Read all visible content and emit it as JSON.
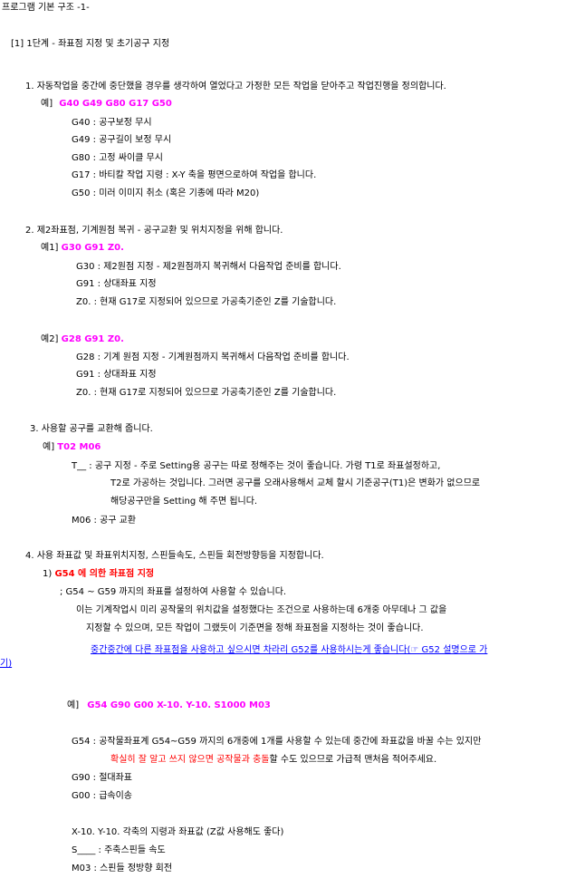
{
  "header": {
    "title": "프로그램  기본 구조 -1-"
  },
  "section": {
    "title": "[1] 1단계 - 좌표점 지정 및 초기공구 지정"
  },
  "item1": {
    "heading": "1. 자동작업을 중간에 중단했을 경우를 생각하여 열었다고 가정한 모든 작업을 닫아주고 작업진행을 정의합니다.",
    "example_label": "예]",
    "example_code": "G40  G49  G80  G17  G50",
    "lines": [
      "G40 : 공구보정 무시",
      "G49 : 공구길이 보정 무시",
      "G80 : 고정 싸이클 무시",
      "G17 : 바티칼 작업 지령 : X-Y 축을 평면으로하여 작업을 합니다.",
      "G50 : 미러 이미지 취소 (혹은 기종에 따라 M20)"
    ]
  },
  "item2": {
    "heading": "2. 제2좌표점, 기계원점 복귀 - 공구교환 및 위치지정을 위해 합니다.",
    "ex1_label": "예1]",
    "ex1_code": "G30 G91 Z0.",
    "ex1_lines": [
      "G30 : 제2원점 지정 - 제2원점까지 복귀해서 다음작업 준비를 합니다.",
      "G91 : 상대좌표 지정",
      "Z0.  : 현재 G17로 지정되어 있으므로 가공축기준인 Z를 기술합니다."
    ],
    "ex2_label": "예2]",
    "ex2_code": "G28 G91 Z0.",
    "ex2_lines": [
      "G28 : 기계 원점 지정 - 기계원점까지 복귀해서 다음작업 준비를 합니다.",
      "G91 : 상대좌표 지정",
      "Z0.  : 현재 G17로 지정되어 있으므로 가공축기준인 Z를 기술합니다."
    ]
  },
  "item3": {
    "heading": "3. 사용할 공구를  교환해 줍니다.",
    "example_label": "예]",
    "example_code": "T02 M06",
    "lines": [
      "T__ : 공구 지정 - 주로 Setting용 공구는 따로 정해주는 것이 좋습니다. 가령 T1로 좌표설정하고,",
      "T2로 가공하는 것입니다. 그러면 공구를 오래사용해서 교체 할시 기준공구(T1)은 변화가 없으므로",
      "해당공구만을  Setting 해 주면 됩니다.",
      "M06  : 공구 교환"
    ]
  },
  "item4": {
    "heading": "4. 사용 좌표값 및 좌표위치지정, 스핀들속도, 스핀들 회전방향등을 지정합니다.",
    "sub_number": "1)",
    "sub_title": "G54 에 의한 좌표점 지정",
    "desc": [
      ";  G54 ~ G59 까지의 좌표를 설정하여 사용할 수 있습니다.",
      "이는 기계작업시 미리 공작물의 위치값을 설정했다는 조건으로 사용하는데 6개중 아무데나 그 값을",
      "지정할 수 있으며, 모든 작업이 그랬듯이 기준면을 정해 좌표점을 지정하는 것이 좋습니다."
    ],
    "link_text_1": "중간중간에 다른 좌표점을 사용하고 싶으시면 차라리 G52를 사용하시는게 좋습니다(☞ G52 설명으로 가",
    "link_text_2": "기)",
    "example_label": "예]",
    "example_code": "G54  G90  G00  X-10. Y-10.  S1000  M03",
    "g54_line": "G54 : 공작물좌표계 G54~G59 까지의 6개중에 1개를 사용할 수 있는데 중간에 좌표값을 바꿀 수는 있지만",
    "warn_red_1": "확실히 잘 알고 쓰지 않으면 공작물과 충돌",
    "warn_rest": "할 수도 있으므로 가급적 맨처음 적어주세요.",
    "lines_a": [
      "G90 : 절대좌표",
      "G00 : 급속이송"
    ],
    "lines_b": [
      "X-10. Y-10.  각축의 지령과  좌표값  (Z값 사용해도 좋다)",
      "S____ :  주축스핀들 속도",
      "M03 : 스핀들 정방향 회전"
    ]
  }
}
